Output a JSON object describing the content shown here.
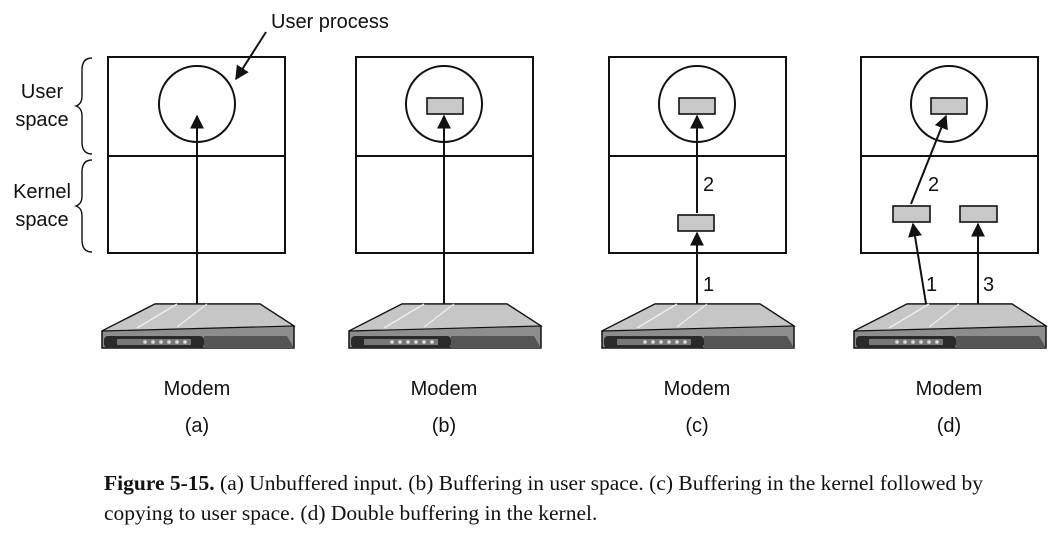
{
  "labels": {
    "user_process": "User process",
    "user_space": [
      "User",
      "space"
    ],
    "kernel_space": [
      "Kernel",
      "space"
    ]
  },
  "panels": [
    {
      "device": "Modem",
      "tag": "(a)",
      "arrow_labels": []
    },
    {
      "device": "Modem",
      "tag": "(b)",
      "arrow_labels": []
    },
    {
      "device": "Modem",
      "tag": "(c)",
      "arrow_labels": [
        "1",
        "2"
      ]
    },
    {
      "device": "Modem",
      "tag": "(d)",
      "arrow_labels": [
        "1",
        "2",
        "3"
      ]
    }
  ],
  "caption": {
    "figure_label": "Figure 5-15.",
    "text": " (a) Unbuffered input. (b) Buffering in user space. (c) Buffering in the kernel followed by copying to user space. (d) Double buffering in the kernel."
  },
  "colors": {
    "buffer_fill": "#c8c8c8",
    "modem_body": "#9a9a9a",
    "modem_top": "#c4c4c4",
    "modem_dark": "#2a2a2a"
  }
}
